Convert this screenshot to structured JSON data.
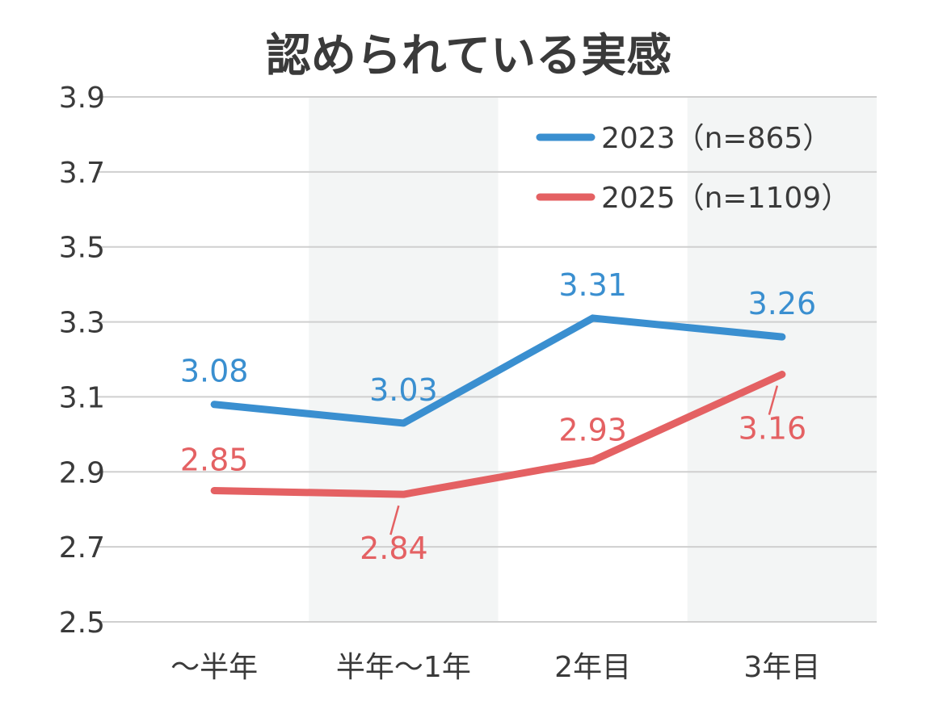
{
  "chart_data": {
    "type": "line",
    "title": "認められている実感",
    "categories": [
      "〜半年",
      "半年〜1年",
      "2年目",
      "3年目"
    ],
    "series": [
      {
        "name": "2023（n=865）",
        "color": "#3a8fd0",
        "values": [
          3.08,
          3.03,
          3.31,
          3.26
        ]
      },
      {
        "name": "2025（n=1109）",
        "color": "#e46163",
        "values": [
          2.85,
          2.84,
          2.93,
          3.16
        ]
      }
    ],
    "ylim": [
      2.5,
      3.9
    ],
    "yticks": [
      "2.5",
      "2.7",
      "2.9",
      "3.1",
      "3.3",
      "3.5",
      "3.7",
      "3.9"
    ],
    "xlabel": "",
    "ylabel": "",
    "grid": true,
    "legend": "top-right"
  }
}
